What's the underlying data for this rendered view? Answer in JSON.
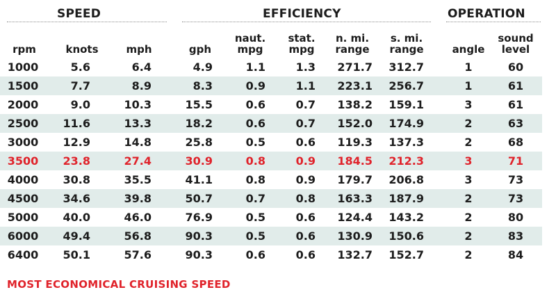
{
  "groups": {
    "speed": "SPEED",
    "efficiency": "EFFICIENCY",
    "operation": "OPERATION"
  },
  "columns": [
    {
      "key": "rpm",
      "lines": [
        "rpm"
      ]
    },
    {
      "key": "knots",
      "lines": [
        "knots"
      ]
    },
    {
      "key": "mph",
      "lines": [
        "mph"
      ]
    },
    {
      "key": "gph",
      "lines": [
        "gph"
      ]
    },
    {
      "key": "naut_mpg",
      "lines": [
        "naut.",
        "mpg"
      ]
    },
    {
      "key": "stat_mpg",
      "lines": [
        "stat.",
        "mpg"
      ]
    },
    {
      "key": "n_mi_range",
      "lines": [
        "n. mi.",
        "range"
      ]
    },
    {
      "key": "s_mi_range",
      "lines": [
        "s. mi.",
        "range"
      ]
    },
    {
      "key": "angle",
      "lines": [
        "angle"
      ]
    },
    {
      "key": "sound_level",
      "lines": [
        "sound",
        "level"
      ]
    }
  ],
  "rows": [
    {
      "cells": [
        "1000",
        "5.6",
        "6.4",
        "4.9",
        "1.1",
        "1.3",
        "271.7",
        "312.7",
        "1",
        "60"
      ],
      "shaded": false,
      "highlight": false
    },
    {
      "cells": [
        "1500",
        "7.7",
        "8.9",
        "8.3",
        "0.9",
        "1.1",
        "223.1",
        "256.7",
        "1",
        "61"
      ],
      "shaded": true,
      "highlight": false
    },
    {
      "cells": [
        "2000",
        "9.0",
        "10.3",
        "15.5",
        "0.6",
        "0.7",
        "138.2",
        "159.1",
        "3",
        "61"
      ],
      "shaded": false,
      "highlight": false
    },
    {
      "cells": [
        "2500",
        "11.6",
        "13.3",
        "18.2",
        "0.6",
        "0.7",
        "152.0",
        "174.9",
        "2",
        "63"
      ],
      "shaded": true,
      "highlight": false
    },
    {
      "cells": [
        "3000",
        "12.9",
        "14.8",
        "25.8",
        "0.5",
        "0.6",
        "119.3",
        "137.3",
        "2",
        "68"
      ],
      "shaded": false,
      "highlight": false
    },
    {
      "cells": [
        "3500",
        "23.8",
        "27.4",
        "30.9",
        "0.8",
        "0.9",
        "184.5",
        "212.3",
        "3",
        "71"
      ],
      "shaded": true,
      "highlight": true
    },
    {
      "cells": [
        "4000",
        "30.8",
        "35.5",
        "41.1",
        "0.8",
        "0.9",
        "179.7",
        "206.8",
        "3",
        "73"
      ],
      "shaded": false,
      "highlight": false
    },
    {
      "cells": [
        "4500",
        "34.6",
        "39.8",
        "50.7",
        "0.7",
        "0.8",
        "163.3",
        "187.9",
        "2",
        "73"
      ],
      "shaded": true,
      "highlight": false
    },
    {
      "cells": [
        "5000",
        "40.0",
        "46.0",
        "76.9",
        "0.5",
        "0.6",
        "124.4",
        "143.2",
        "2",
        "80"
      ],
      "shaded": false,
      "highlight": false
    },
    {
      "cells": [
        "6000",
        "49.4",
        "56.8",
        "90.3",
        "0.5",
        "0.6",
        "130.9",
        "150.6",
        "2",
        "83"
      ],
      "shaded": true,
      "highlight": false
    },
    {
      "cells": [
        "6400",
        "50.1",
        "57.6",
        "90.3",
        "0.6",
        "0.6",
        "132.7",
        "152.7",
        "2",
        "84"
      ],
      "shaded": false,
      "highlight": false
    }
  ],
  "footnote": "MOST ECONOMICAL CRUISING SPEED",
  "colors": {
    "highlight": "#e0232b",
    "shade": "#e1ecea",
    "text": "#1c1c1c"
  }
}
